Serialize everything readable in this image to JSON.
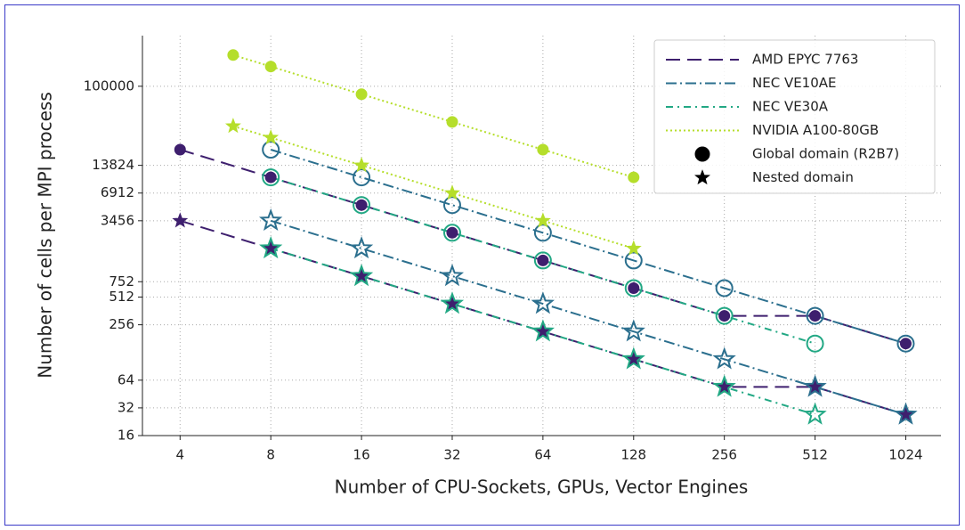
{
  "chart_data": {
    "type": "line",
    "xlabel": "Number of CPU-Sockets, GPUs, Vector Engines",
    "ylabel": "Number of cells per MPI process",
    "xscale": "log",
    "yscale": "log",
    "xlim": [
      3,
      1340
    ],
    "ylim": [
      16,
      355000
    ],
    "xticks": [
      4,
      8,
      16,
      32,
      64,
      128,
      256,
      512,
      1024
    ],
    "yticks": [
      16,
      32,
      64,
      256,
      512,
      752,
      3456,
      6912,
      13824,
      100000
    ],
    "grid": true,
    "legend": "upper right",
    "series": [
      {
        "name": "AMD EPYC 7763",
        "color": "#3e1f6e",
        "linestyle": "dashed",
        "filled": true,
        "global": {
          "x": [
            4,
            8,
            16,
            32,
            64,
            128,
            256,
            512,
            1024
          ],
          "values": [
            20480,
            10240,
            5120,
            2560,
            1280,
            640,
            320,
            320,
            160
          ]
        },
        "nested": {
          "x": [
            4,
            8,
            16,
            32,
            64,
            128,
            256,
            512,
            1024
          ],
          "values": [
            3456,
            1728,
            864,
            432,
            216,
            108,
            54,
            54,
            27
          ]
        }
      },
      {
        "name": "NEC VE10AE",
        "color": "#2b6f8e",
        "linestyle": "dashdot",
        "filled": false,
        "global": {
          "x": [
            8,
            16,
            32,
            64,
            128,
            256,
            512,
            1024
          ],
          "values": [
            20480,
            10240,
            5120,
            2560,
            1280,
            640,
            320,
            160
          ]
        },
        "nested": {
          "x": [
            8,
            16,
            32,
            64,
            128,
            256,
            512,
            1024
          ],
          "values": [
            3456,
            1728,
            864,
            432,
            216,
            108,
            54,
            27
          ]
        }
      },
      {
        "name": "NEC VE30A",
        "color": "#22a884",
        "linestyle": "dashdot2",
        "filled": false,
        "global": {
          "x": [
            8,
            16,
            32,
            64,
            128,
            256,
            512
          ],
          "values": [
            10240,
            5120,
            2560,
            1280,
            640,
            320,
            160
          ]
        },
        "nested": {
          "x": [
            8,
            16,
            32,
            64,
            128,
            256,
            512
          ],
          "values": [
            1728,
            864,
            432,
            216,
            108,
            54,
            27
          ]
        }
      },
      {
        "name": "NVIDIA A100-80GB",
        "color": "#b5de2b",
        "linestyle": "dotted",
        "filled": true,
        "global": {
          "x": [
            6,
            8,
            16,
            32,
            64,
            128
          ],
          "values": [
            218453,
            163840,
            81920,
            40960,
            20480,
            10240
          ]
        },
        "nested": {
          "x": [
            6,
            8,
            16,
            32,
            64,
            128
          ],
          "values": [
            36864,
            27648,
            13824,
            6912,
            3456,
            1728
          ]
        }
      }
    ],
    "domain_legend": [
      {
        "name": "Global domain (R2B7)",
        "marker": "circle"
      },
      {
        "name": "Nested domain",
        "marker": "star"
      }
    ]
  }
}
